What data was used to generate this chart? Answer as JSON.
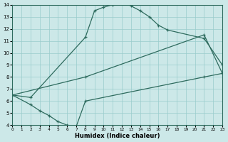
{
  "xlabel": "Humidex (Indice chaleur)",
  "bg_color": "#cce8e8",
  "grid_color": "#99cccc",
  "line_color": "#2e6b5e",
  "xlim": [
    0,
    23
  ],
  "ylim": [
    4,
    14
  ],
  "xticks": [
    0,
    1,
    2,
    3,
    4,
    5,
    6,
    7,
    8,
    9,
    10,
    11,
    12,
    13,
    14,
    15,
    16,
    17,
    18,
    19,
    20,
    21,
    22,
    23
  ],
  "yticks": [
    4,
    5,
    6,
    7,
    8,
    9,
    10,
    11,
    12,
    13,
    14
  ],
  "line1_top": {
    "x": [
      0,
      2,
      8,
      9,
      10,
      11,
      12,
      13,
      14,
      15,
      16,
      17,
      21,
      23
    ],
    "y": [
      6.5,
      6.3,
      11.3,
      13.5,
      13.8,
      14.0,
      14.3,
      13.9,
      13.5,
      13.0,
      12.3,
      11.9,
      11.2,
      9.0
    ]
  },
  "line2_upper": {
    "x": [
      0,
      8,
      21,
      23
    ],
    "y": [
      6.5,
      8.0,
      11.5,
      8.3
    ]
  },
  "line3_lower": {
    "x": [
      0,
      2,
      3,
      4,
      5,
      6,
      7,
      8,
      21,
      23
    ],
    "y": [
      6.5,
      5.7,
      5.2,
      4.8,
      4.3,
      4.0,
      3.9,
      6.0,
      8.0,
      8.3
    ]
  }
}
